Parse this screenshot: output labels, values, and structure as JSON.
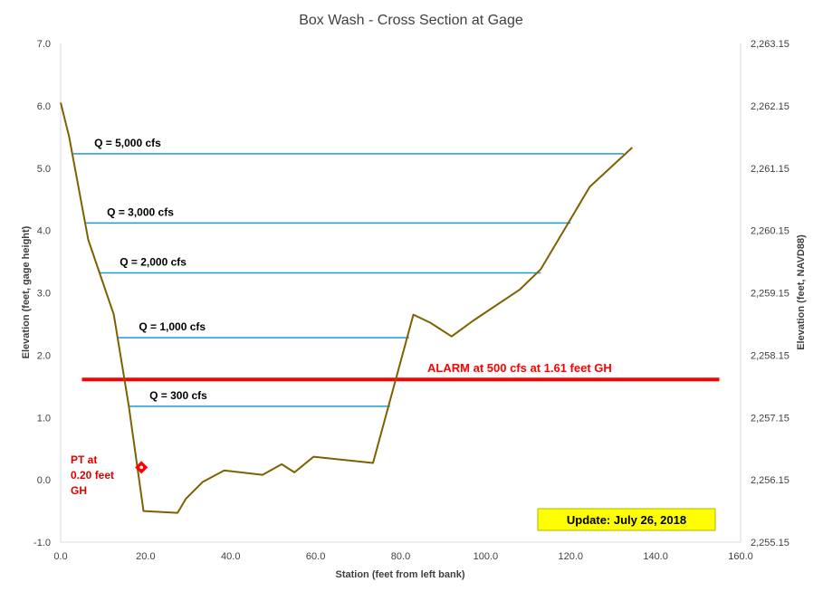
{
  "chart_data": {
    "type": "line",
    "title": "Box Wash - Cross Section at Gage",
    "xlabel": "Station (feet from left bank)",
    "ylabel": "Elevation (feet, gage height)",
    "y2label": "Elevation (feet, NAVD88)",
    "xlim": [
      0,
      160
    ],
    "ylim": [
      -1,
      7
    ],
    "y2lim": [
      2255.15,
      2263.15
    ],
    "x_ticks": [
      "0.0",
      "20.0",
      "40.0",
      "60.0",
      "80.0",
      "100.0",
      "120.0",
      "140.0",
      "160.0"
    ],
    "y_ticks": [
      "-1.0",
      "0.0",
      "1.0",
      "2.0",
      "3.0",
      "4.0",
      "5.0",
      "6.0",
      "7.0"
    ],
    "y2_ticks": [
      "2,255.15",
      "2,256.15",
      "2,257.15",
      "2,258.15",
      "2,259.15",
      "2,260.15",
      "2,261.15",
      "2,262.15",
      "2,263.15"
    ],
    "grid": false,
    "series": [
      {
        "color": "#7f6000",
        "x": [
          0,
          2,
          6.5,
          12.5,
          16,
          19.5,
          27.5,
          29.5,
          33.5,
          38.5,
          47.5,
          52,
          55,
          59.5,
          73.5,
          83,
          87,
          92,
          97,
          108,
          113,
          124.5,
          134.5
        ],
        "y": [
          6.05,
          5.5,
          3.85,
          2.65,
          1.2,
          -0.5,
          -0.53,
          -0.3,
          -0.03,
          0.15,
          0.08,
          0.25,
          0.12,
          0.37,
          0.27,
          2.65,
          2.52,
          2.3,
          2.55,
          3.05,
          3.38,
          4.7,
          5.33
        ]
      }
    ],
    "water_levels": [
      {
        "label": "Q = 5,000 cfs",
        "y": 5.23,
        "x_start": 3,
        "x_end": 132.5,
        "color": "#1e9bd7"
      },
      {
        "label": "Q = 3,000 cfs",
        "y": 4.12,
        "x_start": 6,
        "x_end": 120,
        "color": "#1e9bd7"
      },
      {
        "label": "Q = 2,000 cfs",
        "y": 3.32,
        "x_start": 9,
        "x_end": 113,
        "color": "#1e9bd7"
      },
      {
        "label": "Q = 1,000 cfs",
        "y": 2.28,
        "x_start": 13.5,
        "x_end": 82,
        "color": "#1e9bd7"
      },
      {
        "label": "Q = 300 cfs",
        "y": 1.18,
        "x_start": 16,
        "x_end": 77.5,
        "color": "#1e9bd7"
      }
    ],
    "alarm": {
      "label": "ALARM at 500 cfs at 1.61 feet GH",
      "y": 1.61,
      "x_start": 5,
      "x_end": 155,
      "color": "#ff0000"
    },
    "pt_marker": {
      "label_lines": [
        "PT at",
        "0.20 feet",
        "GH"
      ],
      "x": 19,
      "y": 0.2,
      "color": "#ff0000"
    },
    "update_box": {
      "text": "Update: July 26, 2018",
      "fill": "#ffff00",
      "stroke": "#b3b300"
    }
  }
}
